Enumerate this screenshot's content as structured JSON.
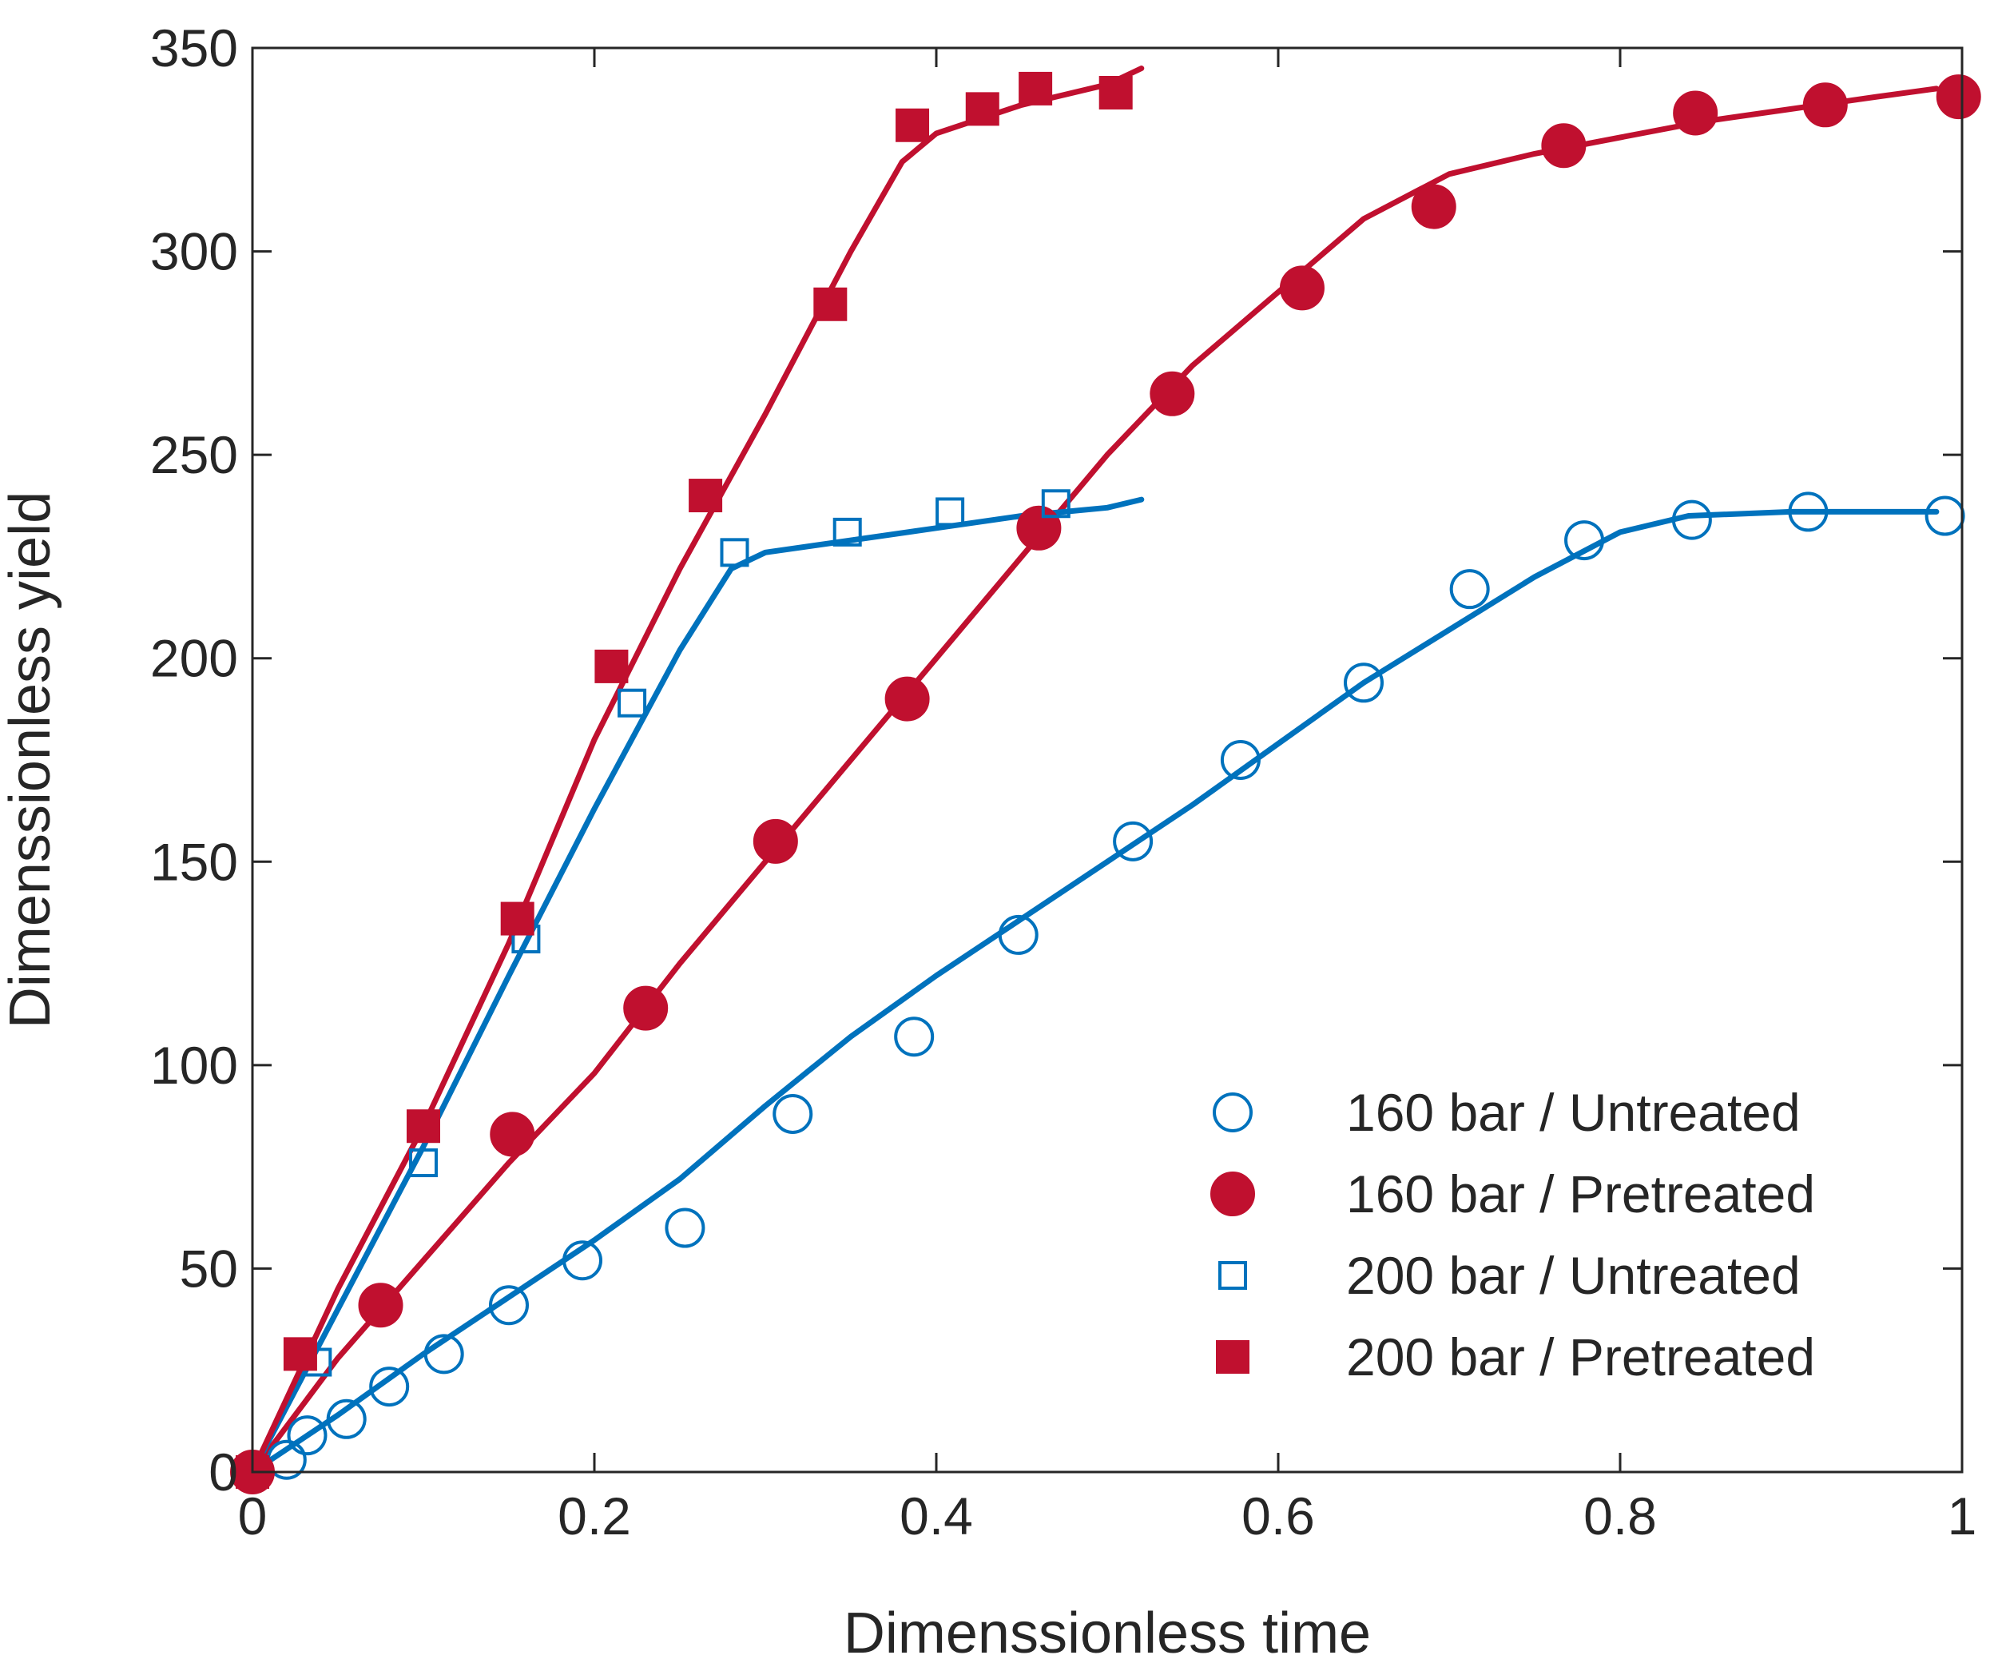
{
  "chart_data": {
    "type": "scatter",
    "title": "",
    "xlabel": "Dimenssionless time",
    "ylabel": "Dimenssionless yield",
    "xlim": [
      0,
      1
    ],
    "ylim": [
      0,
      350
    ],
    "xticks": [
      0,
      0.2,
      0.4,
      0.6,
      0.8,
      1
    ],
    "xtick_labels": [
      "0",
      "0.2",
      "0.4",
      "0.6",
      "0.8",
      "1"
    ],
    "yticks": [
      0,
      50,
      100,
      150,
      200,
      250,
      300,
      350
    ],
    "ytick_labels": [
      "0",
      "50",
      "100",
      "150",
      "200",
      "250",
      "300",
      "350"
    ],
    "grid": false,
    "legend_position": "bottom-right",
    "colors": {
      "blue": "#0072bd",
      "red": "#c0102f",
      "axis": "#262626"
    },
    "series": [
      {
        "name": "160 bar / Untreated",
        "color": "#0072bd",
        "marker": "circle-open",
        "points": [
          [
            0,
            0
          ],
          [
            0.02,
            3
          ],
          [
            0.032,
            9
          ],
          [
            0.055,
            13
          ],
          [
            0.08,
            21
          ],
          [
            0.112,
            29
          ],
          [
            0.15,
            41
          ],
          [
            0.193,
            52
          ],
          [
            0.253,
            60
          ],
          [
            0.316,
            88
          ],
          [
            0.387,
            107
          ],
          [
            0.448,
            132
          ],
          [
            0.515,
            155
          ],
          [
            0.578,
            175
          ],
          [
            0.65,
            194
          ],
          [
            0.712,
            217
          ],
          [
            0.779,
            229
          ],
          [
            0.842,
            234
          ],
          [
            0.91,
            236
          ],
          [
            0.99,
            235
          ]
        ],
        "fit": [
          [
            0,
            0
          ],
          [
            0.05,
            14
          ],
          [
            0.1,
            29
          ],
          [
            0.15,
            43
          ],
          [
            0.2,
            57
          ],
          [
            0.25,
            72
          ],
          [
            0.3,
            90
          ],
          [
            0.35,
            107
          ],
          [
            0.4,
            122
          ],
          [
            0.45,
            136
          ],
          [
            0.5,
            150
          ],
          [
            0.55,
            164
          ],
          [
            0.6,
            179
          ],
          [
            0.65,
            194
          ],
          [
            0.7,
            207
          ],
          [
            0.75,
            220
          ],
          [
            0.8,
            231
          ],
          [
            0.84,
            235
          ],
          [
            0.9,
            236
          ],
          [
            0.985,
            236
          ]
        ]
      },
      {
        "name": "160 bar / Pretreated",
        "color": "#c0102f",
        "marker": "circle-filled",
        "points": [
          [
            0,
            0
          ],
          [
            0.075,
            41
          ],
          [
            0.152,
            83
          ],
          [
            0.23,
            114
          ],
          [
            0.306,
            155
          ],
          [
            0.383,
            190
          ],
          [
            0.46,
            232
          ],
          [
            0.538,
            265
          ],
          [
            0.614,
            291
          ],
          [
            0.691,
            311
          ],
          [
            0.767,
            326
          ],
          [
            0.844,
            334
          ],
          [
            0.92,
            336
          ],
          [
            0.998,
            338
          ]
        ],
        "fit": [
          [
            0,
            0
          ],
          [
            0.05,
            28
          ],
          [
            0.1,
            52
          ],
          [
            0.15,
            76
          ],
          [
            0.2,
            98
          ],
          [
            0.25,
            125
          ],
          [
            0.3,
            150
          ],
          [
            0.35,
            175
          ],
          [
            0.4,
            200
          ],
          [
            0.45,
            225
          ],
          [
            0.5,
            250
          ],
          [
            0.55,
            272
          ],
          [
            0.6,
            290
          ],
          [
            0.65,
            308
          ],
          [
            0.7,
            319
          ],
          [
            0.75,
            324
          ],
          [
            0.8,
            328
          ],
          [
            0.85,
            332
          ],
          [
            0.9,
            335
          ],
          [
            0.95,
            338
          ],
          [
            0.985,
            340
          ]
        ]
      },
      {
        "name": "200 bar / Untreated",
        "color": "#0072bd",
        "marker": "square-open",
        "points": [
          [
            0,
            0
          ],
          [
            0.038,
            27
          ],
          [
            0.1,
            76
          ],
          [
            0.16,
            131
          ],
          [
            0.222,
            189
          ],
          [
            0.282,
            226
          ],
          [
            0.348,
            231
          ],
          [
            0.408,
            236
          ],
          [
            0.47,
            238
          ]
        ],
        "fit": [
          [
            0,
            0
          ],
          [
            0.05,
            40
          ],
          [
            0.1,
            80
          ],
          [
            0.15,
            122
          ],
          [
            0.2,
            163
          ],
          [
            0.25,
            202
          ],
          [
            0.28,
            222
          ],
          [
            0.3,
            226
          ],
          [
            0.35,
            229
          ],
          [
            0.4,
            232
          ],
          [
            0.45,
            235
          ],
          [
            0.5,
            237
          ],
          [
            0.52,
            239
          ]
        ]
      },
      {
        "name": "200 bar / Pretreated",
        "color": "#c0102f",
        "marker": "square-filled",
        "points": [
          [
            0,
            0
          ],
          [
            0.028,
            29
          ],
          [
            0.1,
            85
          ],
          [
            0.155,
            136
          ],
          [
            0.21,
            198
          ],
          [
            0.265,
            240
          ],
          [
            0.338,
            287
          ],
          [
            0.386,
            331
          ],
          [
            0.427,
            335
          ],
          [
            0.458,
            340
          ],
          [
            0.505,
            339
          ]
        ],
        "fit": [
          [
            0,
            0
          ],
          [
            0.05,
            45
          ],
          [
            0.1,
            85
          ],
          [
            0.15,
            130
          ],
          [
            0.2,
            180
          ],
          [
            0.25,
            222
          ],
          [
            0.3,
            260
          ],
          [
            0.35,
            300
          ],
          [
            0.38,
            322
          ],
          [
            0.4,
            329
          ],
          [
            0.45,
            336
          ],
          [
            0.5,
            341
          ],
          [
            0.52,
            345
          ]
        ]
      }
    ]
  }
}
